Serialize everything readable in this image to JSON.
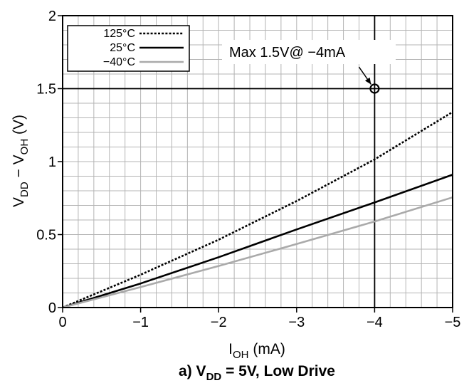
{
  "chart_data": {
    "type": "line",
    "caption": {
      "prefix": "a) V",
      "sub": "DD",
      "suffix": " = 5V, Low Drive"
    },
    "xlabel": {
      "main": "I",
      "sub": "OH",
      "rest": " (mA)"
    },
    "ylabel": {
      "v1": "V",
      "sub1": "DD",
      "mid": " − V",
      "sub2": "OH",
      "rest": " (V)"
    },
    "xlim": [
      0,
      -5
    ],
    "ylim": [
      0,
      2
    ],
    "x_ticks": [
      0,
      -1,
      -2,
      -3,
      -4,
      -5
    ],
    "x_tick_labels": [
      "0",
      "−1",
      "−2",
      "−3",
      "−4",
      "−5"
    ],
    "y_ticks": [
      0,
      0.5,
      1,
      1.5,
      2
    ],
    "y_tick_labels": [
      "0",
      "0.5",
      "1",
      "1.5",
      "2"
    ],
    "grid": true,
    "legend_position": "top-left",
    "series": [
      {
        "name": "125°C",
        "style": "dotted",
        "color": "#000000",
        "x": [
          0,
          -1,
          -2,
          -3,
          -4,
          -5
        ],
        "y": [
          0,
          0.225,
          0.465,
          0.73,
          1.015,
          1.34
        ]
      },
      {
        "name": "25°C",
        "style": "solid",
        "color": "#000000",
        "x": [
          0,
          -1,
          -2,
          -3,
          -4,
          -5
        ],
        "y": [
          0,
          0.165,
          0.345,
          0.535,
          0.72,
          0.91
        ]
      },
      {
        "name": "−40°C",
        "style": "solid",
        "color": "#aaaaaa",
        "x": [
          0,
          -1,
          -2,
          -3,
          -4,
          -5
        ],
        "y": [
          0,
          0.14,
          0.285,
          0.435,
          0.59,
          0.755
        ]
      }
    ],
    "annotation": {
      "text": "Max 1.5V@ −4mA",
      "x": -4,
      "y": 1.5
    }
  }
}
